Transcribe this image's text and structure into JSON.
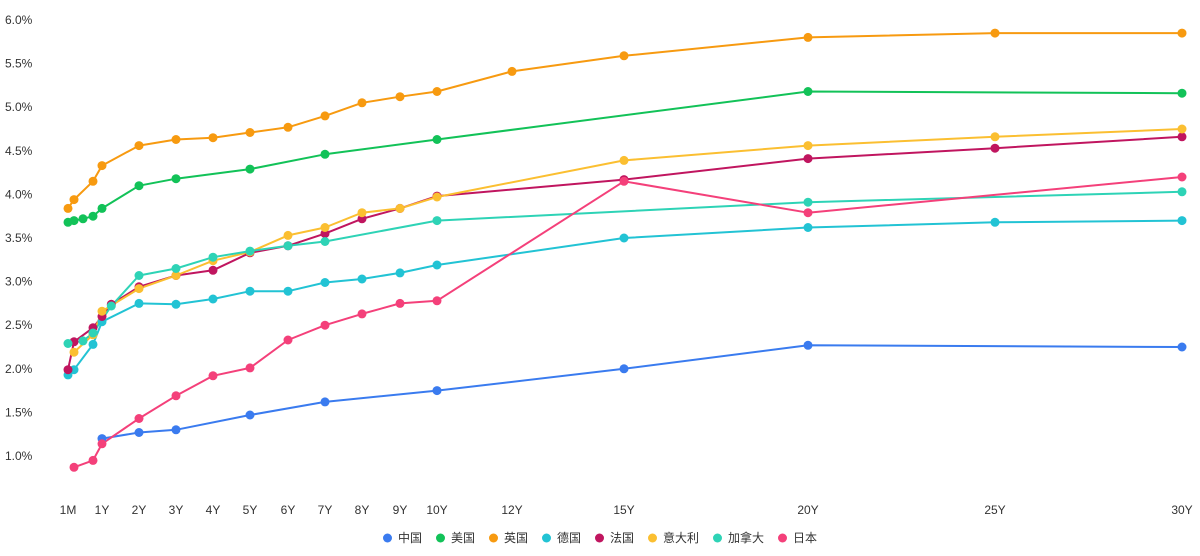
{
  "chart_data": {
    "type": "line",
    "x_positions": [
      0.083,
      0.25,
      0.5,
      0.75,
      1,
      2,
      3,
      4,
      5,
      6,
      7,
      8,
      9,
      10,
      12,
      15,
      20,
      25,
      30
    ],
    "x_ticks": [
      {
        "pos": 0.083,
        "label": "1M"
      },
      {
        "pos": 1,
        "label": "1Y"
      },
      {
        "pos": 2,
        "label": "2Y"
      },
      {
        "pos": 3,
        "label": "3Y"
      },
      {
        "pos": 4,
        "label": "4Y"
      },
      {
        "pos": 5,
        "label": "5Y"
      },
      {
        "pos": 6,
        "label": "6Y"
      },
      {
        "pos": 7,
        "label": "7Y"
      },
      {
        "pos": 8,
        "label": "8Y"
      },
      {
        "pos": 9,
        "label": "9Y"
      },
      {
        "pos": 10,
        "label": "10Y"
      },
      {
        "pos": 12,
        "label": "12Y"
      },
      {
        "pos": 15,
        "label": "15Y"
      },
      {
        "pos": 20,
        "label": "20Y"
      },
      {
        "pos": 25,
        "label": "25Y"
      },
      {
        "pos": 30,
        "label": "30Y"
      }
    ],
    "y_ticks": [
      {
        "value": 1.0,
        "label": "1.0%"
      },
      {
        "value": 1.5,
        "label": "1.5%"
      },
      {
        "value": 2.0,
        "label": "2.0%"
      },
      {
        "value": 2.5,
        "label": "2.5%"
      },
      {
        "value": 3.0,
        "label": "3.0%"
      },
      {
        "value": 3.5,
        "label": "3.5%"
      },
      {
        "value": 4.0,
        "label": "4.0%"
      },
      {
        "value": 4.5,
        "label": "4.5%"
      },
      {
        "value": 5.0,
        "label": "5.0%"
      },
      {
        "value": 5.5,
        "label": "5.5%"
      },
      {
        "value": 6.0,
        "label": "6.0%"
      }
    ],
    "ylim": [
      0.5,
      6.0
    ],
    "grid": false,
    "legend_position": "bottom-center",
    "series": [
      {
        "name": "中国",
        "color": "#3a7bef",
        "points": [
          [
            1,
            1.2
          ],
          [
            2,
            1.27
          ],
          [
            3,
            1.3
          ],
          [
            5,
            1.47
          ],
          [
            7,
            1.62
          ],
          [
            10,
            1.75
          ],
          [
            15,
            2.0
          ],
          [
            20,
            2.27
          ],
          [
            30,
            2.25
          ]
        ]
      },
      {
        "name": "美国",
        "color": "#12c258",
        "points": [
          [
            0.083,
            3.68
          ],
          [
            0.25,
            3.7
          ],
          [
            0.5,
            3.72
          ],
          [
            0.75,
            3.75
          ],
          [
            1,
            3.84
          ],
          [
            2,
            4.1
          ],
          [
            3,
            4.18
          ],
          [
            5,
            4.29
          ],
          [
            7,
            4.46
          ],
          [
            10,
            4.63
          ],
          [
            20,
            5.18
          ],
          [
            30,
            5.16
          ]
        ]
      },
      {
        "name": "英国",
        "color": "#f79a10",
        "points": [
          [
            0.083,
            3.84
          ],
          [
            0.25,
            3.94
          ],
          [
            0.75,
            4.15
          ],
          [
            1,
            4.33
          ],
          [
            2,
            4.56
          ],
          [
            3,
            4.63
          ],
          [
            4,
            4.65
          ],
          [
            5,
            4.71
          ],
          [
            6,
            4.77
          ],
          [
            7,
            4.9
          ],
          [
            8,
            5.05
          ],
          [
            9,
            5.12
          ],
          [
            10,
            5.18
          ],
          [
            12,
            5.41
          ],
          [
            15,
            5.59
          ],
          [
            20,
            5.8
          ],
          [
            25,
            5.85
          ],
          [
            30,
            5.85
          ]
        ]
      },
      {
        "name": "德国",
        "color": "#22c3d4",
        "points": [
          [
            0.083,
            1.93
          ],
          [
            0.25,
            1.99
          ],
          [
            0.75,
            2.28
          ],
          [
            1,
            2.54
          ],
          [
            2,
            2.75
          ],
          [
            3,
            2.74
          ],
          [
            4,
            2.8
          ],
          [
            5,
            2.89
          ],
          [
            6,
            2.89
          ],
          [
            7,
            2.99
          ],
          [
            8,
            3.03
          ],
          [
            9,
            3.1
          ],
          [
            10,
            3.19
          ],
          [
            15,
            3.5
          ],
          [
            20,
            3.62
          ],
          [
            25,
            3.68
          ],
          [
            30,
            3.7
          ]
        ]
      },
      {
        "name": "法国",
        "color": "#c0155f",
        "points": [
          [
            0.083,
            1.99
          ],
          [
            0.25,
            2.31
          ],
          [
            0.75,
            2.47
          ],
          [
            1,
            2.6
          ],
          [
            1.25,
            2.74
          ],
          [
            2,
            2.94
          ],
          [
            3,
            3.07
          ],
          [
            4,
            3.13
          ],
          [
            5,
            3.33
          ],
          [
            6,
            3.41
          ],
          [
            7,
            3.55
          ],
          [
            8,
            3.72
          ],
          [
            9,
            3.84
          ],
          [
            10,
            3.98
          ],
          [
            15,
            4.17
          ],
          [
            20,
            4.41
          ],
          [
            25,
            4.53
          ],
          [
            30,
            4.66
          ]
        ]
      },
      {
        "name": "意大利",
        "color": "#fbbf31",
        "points": [
          [
            0.25,
            2.19
          ],
          [
            0.75,
            2.39
          ],
          [
            1,
            2.66
          ],
          [
            2,
            2.92
          ],
          [
            3,
            3.07
          ],
          [
            4,
            3.24
          ],
          [
            5,
            3.34
          ],
          [
            6,
            3.53
          ],
          [
            7,
            3.62
          ],
          [
            8,
            3.79
          ],
          [
            9,
            3.84
          ],
          [
            10,
            3.97
          ],
          [
            15,
            4.39
          ],
          [
            20,
            4.56
          ],
          [
            25,
            4.66
          ],
          [
            30,
            4.75
          ]
        ]
      },
      {
        "name": "加拿大",
        "color": "#2ed3b6",
        "points": [
          [
            0.083,
            2.29
          ],
          [
            0.5,
            2.32
          ],
          [
            0.75,
            2.41
          ],
          [
            1.25,
            2.72
          ],
          [
            2,
            3.07
          ],
          [
            3,
            3.15
          ],
          [
            4,
            3.28
          ],
          [
            5,
            3.35
          ],
          [
            6,
            3.41
          ],
          [
            7,
            3.46
          ],
          [
            10,
            3.7
          ],
          [
            20,
            3.91
          ],
          [
            30,
            4.03
          ]
        ]
      },
      {
        "name": "日本",
        "color": "#f4407a",
        "points": [
          [
            0.25,
            0.87
          ],
          [
            0.75,
            0.95
          ],
          [
            1,
            1.14
          ],
          [
            2,
            1.43
          ],
          [
            3,
            1.69
          ],
          [
            4,
            1.92
          ],
          [
            5,
            2.01
          ],
          [
            6,
            2.33
          ],
          [
            7,
            2.5
          ],
          [
            8,
            2.63
          ],
          [
            9,
            2.75
          ],
          [
            10,
            2.78
          ],
          [
            15,
            4.15
          ],
          [
            20,
            3.79
          ],
          [
            30,
            4.2
          ]
        ]
      }
    ]
  }
}
